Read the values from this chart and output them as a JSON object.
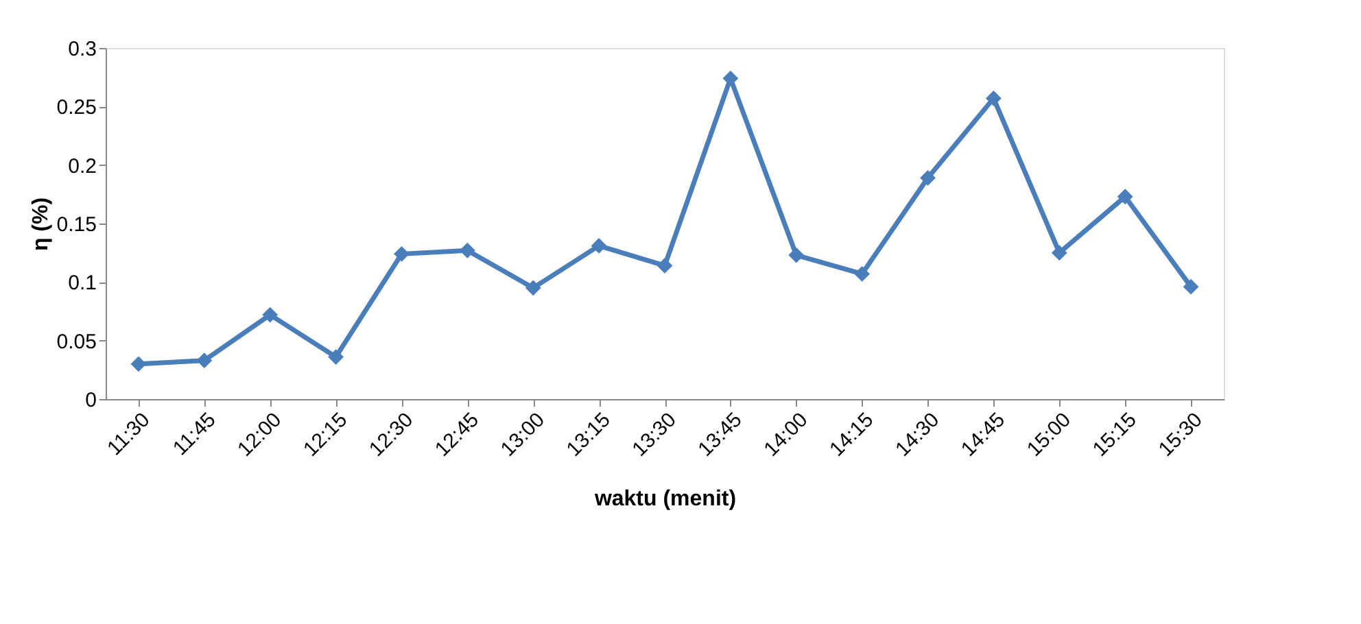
{
  "chart_data": {
    "type": "line",
    "xlabel": "waktu (menit)",
    "ylabel": "η (%)",
    "categories": [
      "11:30",
      "11:45",
      "12:00",
      "12:15",
      "12:30",
      "12:45",
      "13:00",
      "13:15",
      "13:30",
      "13:45",
      "14:00",
      "14:15",
      "14:30",
      "14:45",
      "15:00",
      "15:15",
      "15:30"
    ],
    "series": [
      {
        "color": "#4a7ebb",
        "values": [
          0.03,
          0.033,
          0.072,
          0.036,
          0.124,
          0.127,
          0.095,
          0.131,
          0.114,
          0.274,
          0.123,
          0.107,
          0.189,
          0.257,
          0.125,
          0.173,
          0.096
        ]
      }
    ],
    "ylim": [
      0,
      0.3
    ],
    "yticks": [
      0,
      0.05,
      0.1,
      0.15,
      0.2,
      0.25,
      0.3
    ],
    "grid": false,
    "marker": "diamond",
    "line_style": "solid"
  }
}
